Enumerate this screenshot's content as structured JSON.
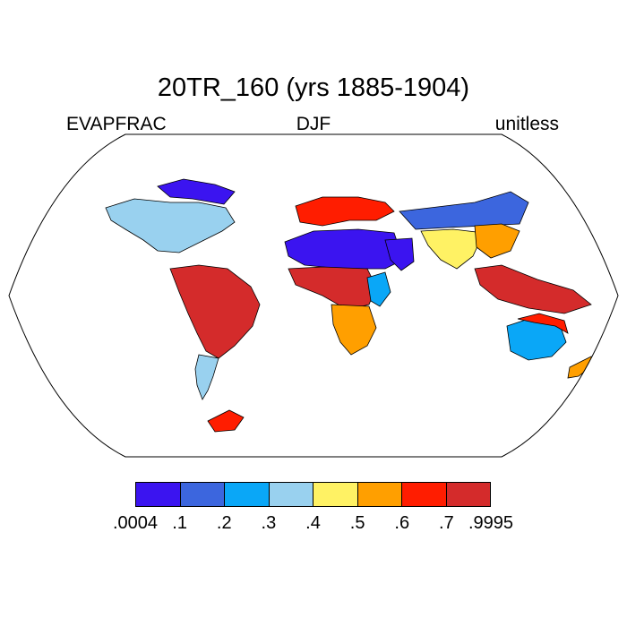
{
  "title": "20TR_160 (yrs 1885-1904)",
  "left_label": "EVAPFRAC",
  "center_label": "DJF",
  "right_label": "unitless",
  "colorbar": {
    "colors": [
      "#3b14f0",
      "#3c66de",
      "#0aa7f7",
      "#99d1ef",
      "#fff264",
      "#ff9f00",
      "#ff1d00",
      "#d42b2b"
    ],
    "labels": [
      ".0004",
      ".1",
      ".2",
      ".3",
      ".4",
      ".5",
      ".6",
      ".7",
      ".9995"
    ]
  },
  "map": {
    "projection": "Robinson",
    "ocean_color": "#ffffff",
    "coastline_color": "#000000",
    "regions": [
      {
        "name": "north-africa-sahara",
        "level": 0
      },
      {
        "name": "arabian-peninsula",
        "level": 0
      },
      {
        "name": "canadian-arctic",
        "level": 0
      },
      {
        "name": "central-asia",
        "level": 1
      },
      {
        "name": "north-america-midlatitudes",
        "level": 3
      },
      {
        "name": "europe",
        "level": 6
      },
      {
        "name": "south-america-tropics",
        "level": 7
      },
      {
        "name": "central-africa",
        "level": 7
      },
      {
        "name": "southern-africa",
        "level": 5
      },
      {
        "name": "east-africa",
        "level": 2
      },
      {
        "name": "south-asia",
        "level": 4
      },
      {
        "name": "east-china",
        "level": 5
      },
      {
        "name": "maritime-continent",
        "level": 7
      },
      {
        "name": "central-australia",
        "level": 2
      },
      {
        "name": "coastal-australia",
        "level": 6
      },
      {
        "name": "patagonia",
        "level": 3
      },
      {
        "name": "antarctic-peninsula",
        "level": 6
      },
      {
        "name": "new-zealand",
        "level": 5
      }
    ]
  }
}
